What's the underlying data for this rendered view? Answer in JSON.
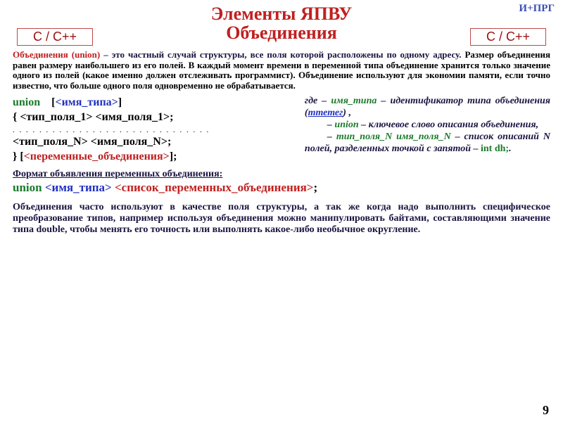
{
  "colors": {
    "tag": "#3c4fb2",
    "title": "#c02020",
    "badge_text": "#a01010",
    "badge_border": "#c04848",
    "text_dark": "#1a1440",
    "black": "#000000",
    "union": "#1a7a2a",
    "typename": "#2030c0",
    "var_end": "#c02020",
    "mtetag_link": "#2030c0"
  },
  "corner_tag": "И+ПРГ",
  "title_line1": "Элементы ЯПВУ",
  "title_line2": "Объединения",
  "badge_left": "C / C++",
  "badge_right": "C / C++",
  "intro_p1a": "Объединения (union)",
  "intro_p1b": " – это частный случай структуры, все поля которой расположены по одному адресу. ",
  "intro_p1c": "Размер объединения равен размеру наибольшего из его полей.  В каждый момент времени в переменной типа объединение хранится только значение одного из полей (какое именно должен отслеживать программист). Объединение используют для экономии памяти, если точно известно, что больше одного поля одновременно не обрабатывается.",
  "syntax": {
    "kw_union": "union",
    "lbr": "[",
    "type_name": "<имя_типа>",
    "rbr": "]",
    "line2a": "{ ",
    "tp1": "<тип_поля_1>",
    "sp": " ",
    "np1": "<имя_поля_1>",
    "semi": ";",
    "dots": ". . . . . . . . . . . . . . . . . . . . . . . . . . . . . .",
    "tpN": "<тип_поля_N>",
    "npN": "<имя_поля_N>",
    "lineEnd_a": "} ",
    "vars": "<переменные_объединения>",
    "lineEnd_b": ";"
  },
  "desc": {
    "l1a": "где  – ",
    "l1b": "имя_типа",
    "l1c": " – идентификатор типа объединения (",
    "l1d": "mтетег",
    "l1e": ") ,",
    "l2a": "– ",
    "l2b": "union",
    "l2c": " – ключевое слово описания объединения,",
    "l3a": "– ",
    "l3b": "тип_поля_N имя_поля_N",
    "l3c": " – список описаний N полей, разделен­ных точкой с запятой – ",
    "l3d": "int dh;",
    "l3e": "."
  },
  "var_decl_hdr": "Формат объявления переменных объединения:",
  "var_decl": {
    "kw": "union",
    "sp": "   ",
    "tn": "<имя_типа>",
    "sp2": " ",
    "list": "<список_переменных_объединения>",
    "semi": ";"
  },
  "outro": "Объединения часто используют в качестве поля структуры, а так же когда надо выполнить специфическое преобразование типов, например используя объединения можно манипулировать байтами, составляющими значение типа double, чтобы менять его точность или выполнять какое-либо необычное округление.",
  "page_num": "9"
}
